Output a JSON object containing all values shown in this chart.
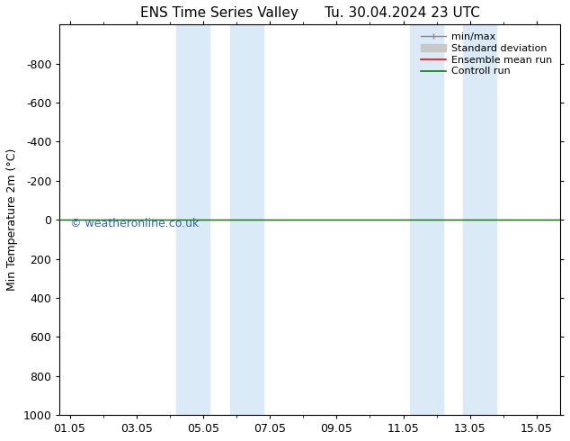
{
  "title": "ENS Time Series Valley      Tu. 30.04.2024 23 UTC",
  "ylabel": "Min Temperature 2m (°C)",
  "ylim": [
    1000,
    -1000
  ],
  "yticks": [
    -800,
    -600,
    -400,
    -200,
    0,
    200,
    400,
    600,
    800,
    1000
  ],
  "xtick_labels": [
    "01.05",
    "03.05",
    "05.05",
    "07.05",
    "09.05",
    "11.05",
    "13.05",
    "15.05"
  ],
  "xtick_positions": [
    0,
    2,
    4,
    6,
    8,
    10,
    12,
    14
  ],
  "xlim": [
    -0.3,
    14.7
  ],
  "shaded_bands": [
    [
      3.2,
      4.2
    ],
    [
      4.8,
      5.8
    ],
    [
      10.2,
      11.2
    ],
    [
      11.8,
      12.8
    ]
  ],
  "shaded_color": "#daeaf7",
  "control_run_y": 0,
  "control_run_color": "#008000",
  "ensemble_mean_color": "#ff0000",
  "watermark": "© weatheronline.co.uk",
  "watermark_color": "#3366bb",
  "bg_color": "#ffffff",
  "legend_entries": [
    "min/max",
    "Standard deviation",
    "Ensemble mean run",
    "Controll run"
  ],
  "legend_colors": [
    "#888888",
    "#c8c8c8",
    "#ff0000",
    "#008000"
  ]
}
